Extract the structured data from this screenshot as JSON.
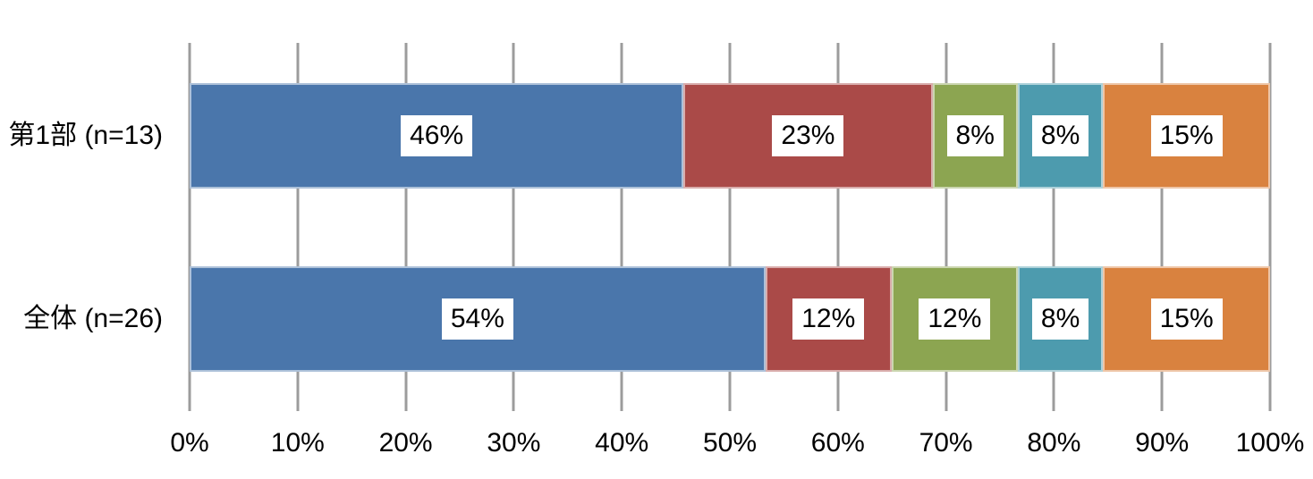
{
  "chart_data": {
    "type": "bar",
    "orientation": "horizontal",
    "stacked": true,
    "title": "",
    "legend": "none",
    "grid": true,
    "gridline_color": "#9c9c9c",
    "label_box_bg": "#ffffff",
    "text_color": "#000000",
    "xlim": [
      0,
      100
    ],
    "x_ticks": [
      "0%",
      "10%",
      "20%",
      "30%",
      "40%",
      "50%",
      "60%",
      "70%",
      "80%",
      "90%",
      "100%"
    ],
    "categories": [
      "第1部 (n=13)",
      "全体 (n=26)"
    ],
    "series": [
      {
        "name": "blue",
        "color": "#4a76ab",
        "values": [
          46,
          54
        ],
        "labels": [
          "46%",
          "54%"
        ],
        "widths_pct": [
          46.15,
          53.85
        ]
      },
      {
        "name": "red",
        "color": "#aa4a48",
        "values": [
          23,
          12
        ],
        "labels": [
          "23%",
          "12%"
        ],
        "widths_pct": [
          23.08,
          11.54
        ]
      },
      {
        "name": "green",
        "color": "#8ca551",
        "values": [
          8,
          12
        ],
        "labels": [
          "8%",
          "12%"
        ],
        "widths_pct": [
          7.69,
          11.54
        ]
      },
      {
        "name": "teal",
        "color": "#4d9bae",
        "values": [
          8,
          8
        ],
        "labels": [
          "8%",
          "8%"
        ],
        "widths_pct": [
          7.69,
          7.69
        ]
      },
      {
        "name": "orange",
        "color": "#d9823f",
        "values": [
          15,
          15
        ],
        "labels": [
          "15%",
          "15%"
        ],
        "widths_pct": [
          15.38,
          15.38
        ]
      }
    ]
  }
}
